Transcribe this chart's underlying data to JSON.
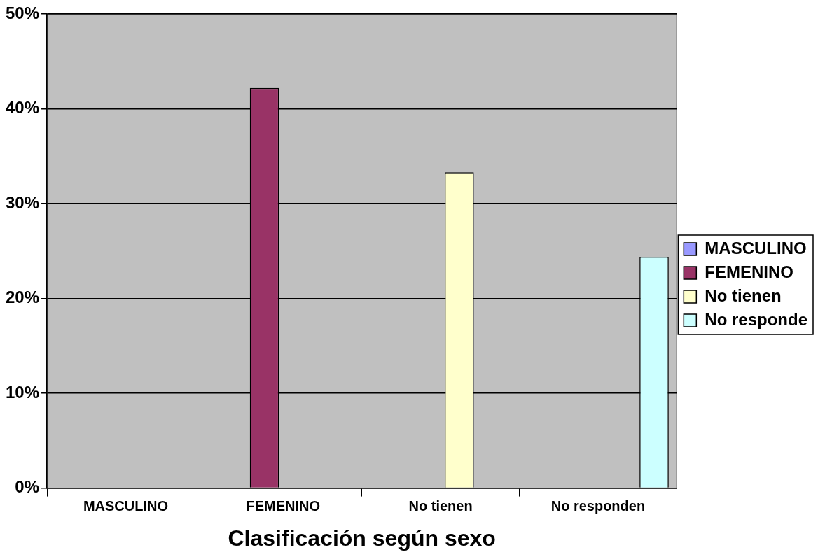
{
  "chart_data": {
    "type": "bar",
    "xlabel": "Clasificación según sexo",
    "categories": [
      "MASCULINO",
      "FEMENINO",
      "No tienen",
      "No responden"
    ],
    "series": [
      {
        "name": "MASCULINO",
        "color": "#9999ff",
        "values": [
          0,
          null,
          null,
          null
        ]
      },
      {
        "name": "FEMENINO",
        "color": "#993366",
        "values": [
          null,
          42.2,
          null,
          null
        ]
      },
      {
        "name": "No tienen",
        "color": "#ffffcc",
        "values": [
          null,
          null,
          33.3,
          null
        ]
      },
      {
        "name": "No responde",
        "color": "#ccffff",
        "values": [
          null,
          null,
          null,
          24.4
        ]
      }
    ],
    "ylim": [
      0,
      50
    ],
    "yticks": [
      {
        "value": 0,
        "label": "0%"
      },
      {
        "value": 10,
        "label": "10%"
      },
      {
        "value": 20,
        "label": "20%"
      },
      {
        "value": 30,
        "label": "30%"
      },
      {
        "value": 40,
        "label": "40%"
      },
      {
        "value": 50,
        "label": "50%"
      }
    ],
    "grid": "y",
    "legend": "right"
  }
}
